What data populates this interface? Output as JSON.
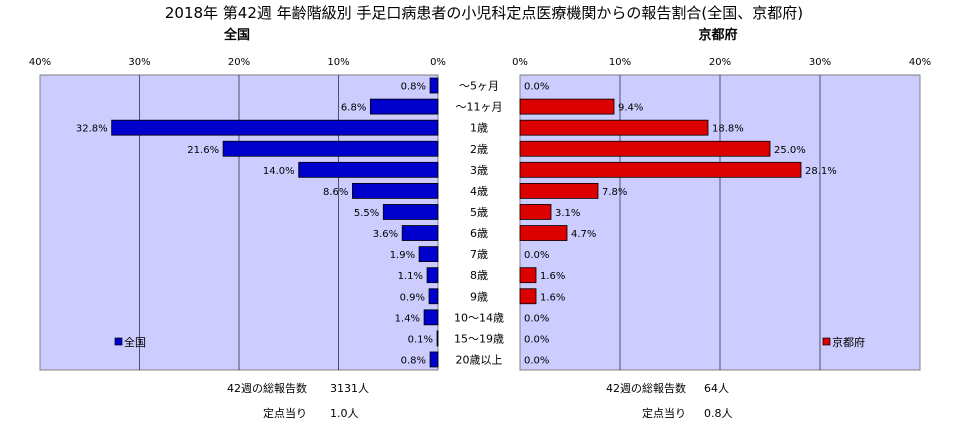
{
  "chart_data": {
    "type": "bar",
    "orientation": "horizontal-butterfly",
    "title": "2018年 第42週 年齢階級別 手足口病患者の小児科定点医療機関からの報告割合(全国、京都府)",
    "categories": [
      "〜5ヶ月",
      "〜11ヶ月",
      "1歳",
      "2歳",
      "3歳",
      "4歳",
      "5歳",
      "6歳",
      "7歳",
      "8歳",
      "9歳",
      "10〜14歳",
      "15〜19歳",
      "20歳以上"
    ],
    "xlim": [
      0,
      40
    ],
    "ticks": [
      "0%",
      "10%",
      "20%",
      "30%",
      "40%"
    ],
    "grid": true,
    "panels": [
      {
        "id": "national",
        "name": "全国",
        "legend": "全国",
        "color": "#0000cc",
        "direction": "left",
        "values": [
          0.8,
          6.8,
          32.8,
          21.6,
          14.0,
          8.6,
          5.5,
          3.6,
          1.9,
          1.1,
          0.9,
          1.4,
          0.1,
          0.8
        ],
        "labels": [
          "0.8%",
          "6.8%",
          "32.8%",
          "21.6%",
          "14.0%",
          "8.6%",
          "5.5%",
          "3.6%",
          "1.9%",
          "1.1%",
          "0.9%",
          "1.4%",
          "0.1%",
          "0.8%"
        ],
        "summary": {
          "total_label": "42週の総報告数",
          "total_value": "3131人",
          "per_label": "定点当り",
          "per_value": "1.0人"
        }
      },
      {
        "id": "kyoto",
        "name": "京都府",
        "legend": "京都府",
        "color": "#dd0000",
        "direction": "right",
        "values": [
          0.0,
          9.4,
          18.8,
          25.0,
          28.1,
          7.8,
          3.1,
          4.7,
          0.0,
          1.6,
          1.6,
          0.0,
          0.0,
          0.0
        ],
        "labels": [
          "0.0%",
          "9.4%",
          "18.8%",
          "25.0%",
          "28.1%",
          "7.8%",
          "3.1%",
          "4.7%",
          "0.0%",
          "1.6%",
          "1.6%",
          "0.0%",
          "0.0%",
          "0.0%"
        ],
        "summary": {
          "total_label": "42週の総報告数",
          "total_value": "64人",
          "per_label": "定点当り",
          "per_value": "0.8人"
        }
      }
    ]
  }
}
